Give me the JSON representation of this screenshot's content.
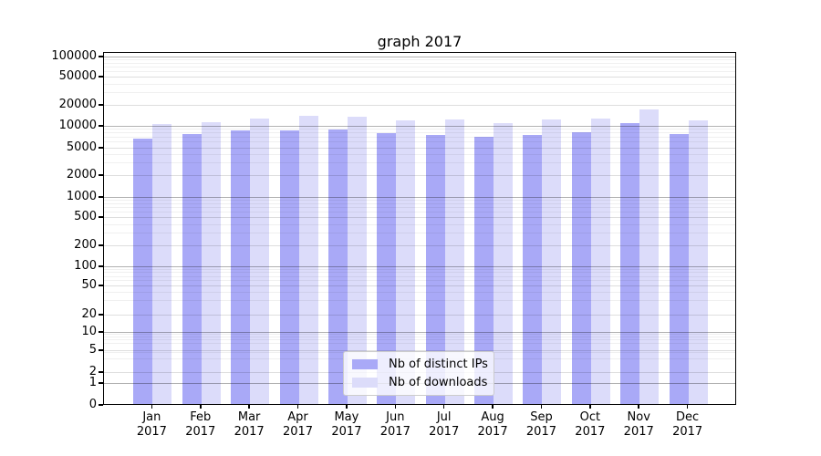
{
  "title": "graph 2017",
  "chart_data": {
    "type": "bar",
    "title": "graph 2017",
    "categories": [
      "Jan 2017",
      "Feb 2017",
      "Mar 2017",
      "Apr 2017",
      "May 2017",
      "Jun 2017",
      "Jul 2017",
      "Aug 2017",
      "Sep 2017",
      "Oct 2017",
      "Nov 2017",
      "Dec 2017"
    ],
    "series": [
      {
        "name": "Nb of distinct IPs",
        "color": "#a9a9f7",
        "values": [
          6900,
          7800,
          8800,
          9000,
          9200,
          8100,
          7700,
          7200,
          7600,
          8300,
          11200,
          7900
        ]
      },
      {
        "name": "Nb of downloads",
        "color": "#dcdcfa",
        "values": [
          10900,
          11600,
          13300,
          14400,
          14100,
          12400,
          12700,
          11400,
          12700,
          13100,
          17800,
          12400
        ]
      }
    ],
    "xlabel": "",
    "ylabel": "",
    "yscale": "symlog",
    "ylim": [
      0,
      100000
    ],
    "y_ticks": [
      0,
      1,
      2,
      5,
      10,
      20,
      50,
      100,
      200,
      500,
      1000,
      2000,
      5000,
      10000,
      20000,
      50000,
      100000
    ],
    "grid": true,
    "legend_position": "lower center"
  }
}
